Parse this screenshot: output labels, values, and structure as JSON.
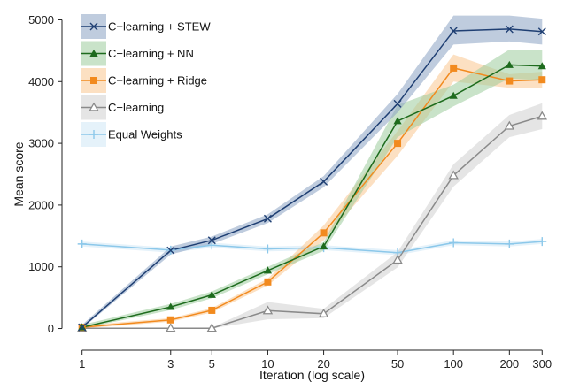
{
  "chart_data": {
    "type": "line",
    "xlabel": "Iteration (log scale)",
    "ylabel": "Mean score",
    "x_scale": "log",
    "xlim": [
      0.87,
      345
    ],
    "ylim": [
      -150,
      5150
    ],
    "x_ticks": [
      1,
      3,
      5,
      10,
      20,
      50,
      100,
      200,
      300
    ],
    "y_ticks": [
      0,
      1000,
      2000,
      3000,
      4000,
      5000
    ],
    "grid": false,
    "legend_position": "top-left",
    "series": [
      {
        "name": "C−learning + STEW",
        "color": "#1f3f73",
        "band_color": "#8aa3c2",
        "marker": "x",
        "x": [
          1,
          3,
          5,
          10,
          20,
          50,
          100,
          200,
          300
        ],
        "y": [
          20,
          1265,
          1430,
          1780,
          2380,
          3640,
          4820,
          4850,
          4810
        ],
        "lower": [
          0,
          1200,
          1370,
          1710,
          2290,
          3500,
          4600,
          4650,
          4600
        ],
        "upper": [
          60,
          1330,
          1490,
          1850,
          2470,
          3800,
          5070,
          5070,
          5020
        ]
      },
      {
        "name": "C−learning + NN",
        "color": "#1d6b1d",
        "band_color": "#9ccc9c",
        "marker": "triangle-filled",
        "x": [
          1,
          3,
          5,
          10,
          20,
          50,
          100,
          200,
          300
        ],
        "y": [
          20,
          350,
          545,
          940,
          1330,
          3360,
          3770,
          4270,
          4250
        ],
        "lower": [
          0,
          300,
          490,
          880,
          1260,
          3100,
          3600,
          4050,
          4020
        ],
        "upper": [
          60,
          400,
          600,
          1000,
          1400,
          3620,
          3950,
          4520,
          4520
        ]
      },
      {
        "name": "C−learning + Ridge",
        "color": "#f28a1e",
        "band_color": "#f9c690",
        "marker": "square",
        "x": [
          1,
          3,
          5,
          10,
          20,
          50,
          100,
          200,
          300
        ],
        "y": [
          20,
          140,
          295,
          755,
          1550,
          3000,
          4220,
          4010,
          4030
        ],
        "lower": [
          0,
          110,
          260,
          700,
          1430,
          2800,
          4000,
          3900,
          3900
        ],
        "upper": [
          50,
          170,
          330,
          810,
          1670,
          3200,
          4440,
          4120,
          4160
        ]
      },
      {
        "name": "C−learning",
        "color": "#8a8a8a",
        "band_color": "#cfcfcf",
        "marker": "triangle-open",
        "x": [
          1,
          3,
          5,
          10,
          20,
          50,
          100,
          200,
          300
        ],
        "y": [
          5,
          5,
          5,
          290,
          240,
          1110,
          2480,
          3280,
          3440
        ],
        "lower": [
          0,
          0,
          0,
          150,
          170,
          990,
          2300,
          3100,
          3230
        ],
        "upper": [
          15,
          15,
          15,
          430,
          320,
          1240,
          2660,
          3460,
          3650
        ]
      },
      {
        "name": "Equal Weights",
        "color": "#8cc8ea",
        "band_color": "#cfe8f6",
        "marker": "plus",
        "x": [
          1,
          3,
          5,
          10,
          20,
          50,
          100,
          200,
          300
        ],
        "y": [
          1370,
          1270,
          1350,
          1290,
          1310,
          1230,
          1390,
          1370,
          1410
        ],
        "lower": [
          1330,
          1230,
          1310,
          1250,
          1270,
          1190,
          1350,
          1330,
          1370
        ],
        "upper": [
          1410,
          1310,
          1390,
          1330,
          1350,
          1270,
          1430,
          1410,
          1450
        ]
      }
    ]
  }
}
